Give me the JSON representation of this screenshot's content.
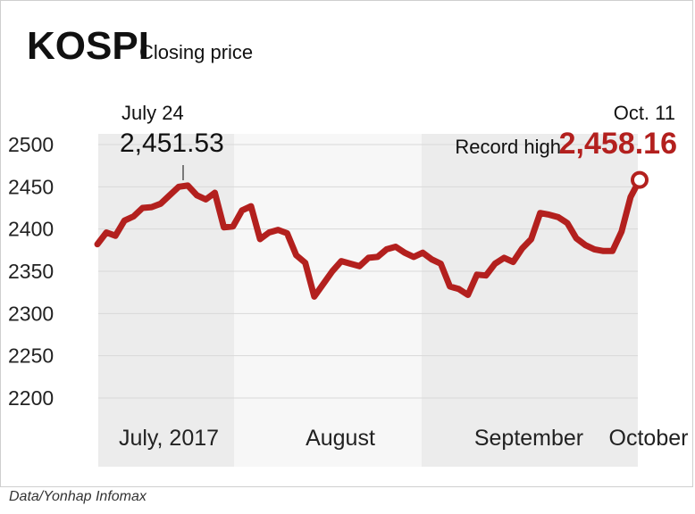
{
  "chart_data": {
    "type": "line",
    "title": "KOSPI",
    "subtitle": "Closing price",
    "source": "Data/Yonhap Infomax",
    "y_ticks": [
      "2500",
      "2450",
      "2400",
      "2350",
      "2300",
      "2250",
      "2200"
    ],
    "y_tick_values": [
      2500,
      2450,
      2400,
      2350,
      2300,
      2250,
      2200
    ],
    "ylim": [
      2200,
      2500
    ],
    "grid": true,
    "month_labels": [
      "July, 2017",
      "August",
      "September",
      "October"
    ],
    "series": [
      {
        "values": [
          2382,
          2396,
          2392,
          2410,
          2415,
          2425,
          2426,
          2430,
          2440,
          2450,
          2451.53,
          2440,
          2435,
          2443,
          2402,
          2403,
          2422,
          2427,
          2388,
          2396,
          2399,
          2395,
          2369,
          2360,
          2320,
          2335,
          2350,
          2362,
          2359,
          2356,
          2366,
          2367,
          2376,
          2379,
          2372,
          2367,
          2372,
          2364,
          2359,
          2332,
          2329,
          2322,
          2346,
          2345,
          2359,
          2366,
          2361,
          2377,
          2388,
          2419,
          2417,
          2414,
          2407,
          2389,
          2381,
          2376,
          2374,
          2374,
          2397,
          2438,
          2458.16
        ]
      }
    ],
    "annotations": [
      {
        "label": "July 24",
        "value_text": "2,451.53",
        "value": 2451.53
      },
      {
        "label": "Oct. 11",
        "prefix": "Record high",
        "value_text": "2,458.16",
        "value": 2458.16
      }
    ],
    "colors": {
      "line": "#b3201e",
      "shade": "#ececec",
      "grid": "#d9d9d9",
      "marker_fill": "#ffffff"
    }
  }
}
